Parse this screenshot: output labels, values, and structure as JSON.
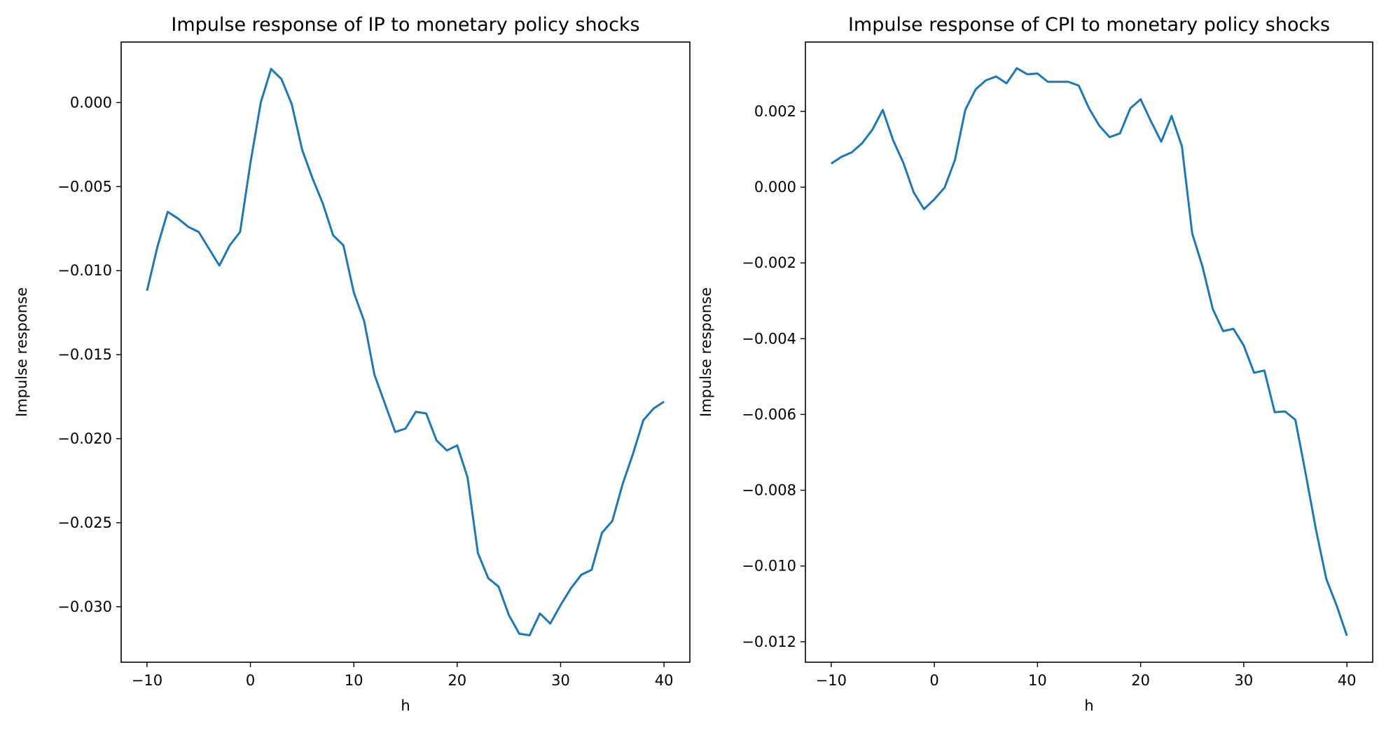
{
  "chart_data": [
    {
      "type": "line",
      "title": "Impulse response of IP to monetary policy shocks",
      "xlabel": "h",
      "ylabel": "Impulse response",
      "xlim": [
        -12.5,
        42.5
      ],
      "ylim": [
        -0.0333,
        0.0036
      ],
      "xticks": [
        -10,
        0,
        10,
        20,
        30,
        40
      ],
      "xtick_labels": [
        "−10",
        "0",
        "10",
        "20",
        "30",
        "40"
      ],
      "yticks": [
        0.0,
        -0.005,
        -0.01,
        -0.015,
        -0.02,
        -0.025,
        -0.03
      ],
      "ytick_labels": [
        "0.000",
        "−0.005",
        "−0.010",
        "−0.015",
        "−0.020",
        "−0.025",
        "−0.030"
      ],
      "grid": false,
      "series": [
        {
          "color": "#1f77b4",
          "x": [
            -10,
            -9,
            -8,
            -7,
            -6,
            -5,
            -4,
            -3,
            -2,
            -1,
            0,
            1,
            2,
            3,
            4,
            5,
            6,
            7,
            8,
            9,
            10,
            11,
            12,
            13,
            14,
            15,
            16,
            17,
            18,
            19,
            20,
            21,
            22,
            23,
            24,
            25,
            26,
            27,
            28,
            29,
            30,
            31,
            32,
            33,
            34,
            35,
            36,
            37,
            38,
            39,
            40
          ],
          "values": [
            -0.0112,
            -0.0086,
            -0.0065,
            -0.0069,
            -0.0074,
            -0.0077,
            -0.0087,
            -0.0097,
            -0.0085,
            -0.0077,
            -0.0036,
            -0.0,
            0.002,
            0.0014,
            -0.0001,
            -0.0028,
            -0.0045,
            -0.006,
            -0.0079,
            -0.0085,
            -0.0113,
            -0.013,
            -0.0162,
            -0.0179,
            -0.0196,
            -0.0194,
            -0.0184,
            -0.0185,
            -0.0201,
            -0.0207,
            -0.0204,
            -0.0223,
            -0.0268,
            -0.0283,
            -0.0288,
            -0.0305,
            -0.0316,
            -0.0317,
            -0.0304,
            -0.031,
            -0.0299,
            -0.0289,
            -0.0281,
            -0.0278,
            -0.0256,
            -0.0249,
            -0.0227,
            -0.0209,
            -0.0189,
            -0.0182,
            -0.0178
          ]
        }
      ]
    },
    {
      "type": "line",
      "title": "Impulse response of CPI to monetary policy shocks",
      "xlabel": "h",
      "ylabel": "Impulse response",
      "xlim": [
        -12.5,
        42.5
      ],
      "ylim": [
        -0.01254,
        0.00383
      ],
      "xticks": [
        -10,
        0,
        10,
        20,
        30,
        40
      ],
      "xtick_labels": [
        "−10",
        "0",
        "10",
        "20",
        "30",
        "40"
      ],
      "yticks": [
        0.002,
        0.0,
        -0.002,
        -0.004,
        -0.006,
        -0.008,
        -0.01,
        -0.012
      ],
      "ytick_labels": [
        "0.002",
        "0.000",
        "−0.002",
        "−0.004",
        "−0.006",
        "−0.008",
        "−0.010",
        "−0.012"
      ],
      "grid": false,
      "series": [
        {
          "color": "#1f77b4",
          "x": [
            -10,
            -9,
            -8,
            -7,
            -6,
            -5,
            -4,
            -3,
            -2,
            -1,
            0,
            1,
            2,
            3,
            4,
            5,
            6,
            7,
            8,
            9,
            10,
            11,
            12,
            13,
            14,
            15,
            16,
            17,
            18,
            19,
            20,
            21,
            22,
            23,
            24,
            25,
            26,
            27,
            28,
            29,
            30,
            31,
            32,
            33,
            34,
            35,
            36,
            37,
            38,
            39,
            40
          ],
          "values": [
            0.00062,
            0.0008,
            0.00092,
            0.00116,
            0.00152,
            0.00204,
            0.00124,
            0.00064,
            -0.00014,
            -0.00058,
            -0.00032,
            -1e-05,
            0.00072,
            0.00204,
            0.00258,
            0.00282,
            0.00292,
            0.00274,
            0.00314,
            0.00298,
            0.003,
            0.00278,
            0.00278,
            0.00278,
            0.00268,
            0.00208,
            0.00162,
            0.00132,
            0.00142,
            0.00208,
            0.00232,
            0.00174,
            0.0012,
            0.00188,
            0.00108,
            -0.00122,
            -0.0021,
            -0.00322,
            -0.0038,
            -0.00374,
            -0.00418,
            -0.0049,
            -0.00484,
            -0.00594,
            -0.00592,
            -0.00614,
            -0.00756,
            -0.00904,
            -0.01034,
            -0.01104,
            -0.01184
          ]
        }
      ]
    }
  ]
}
